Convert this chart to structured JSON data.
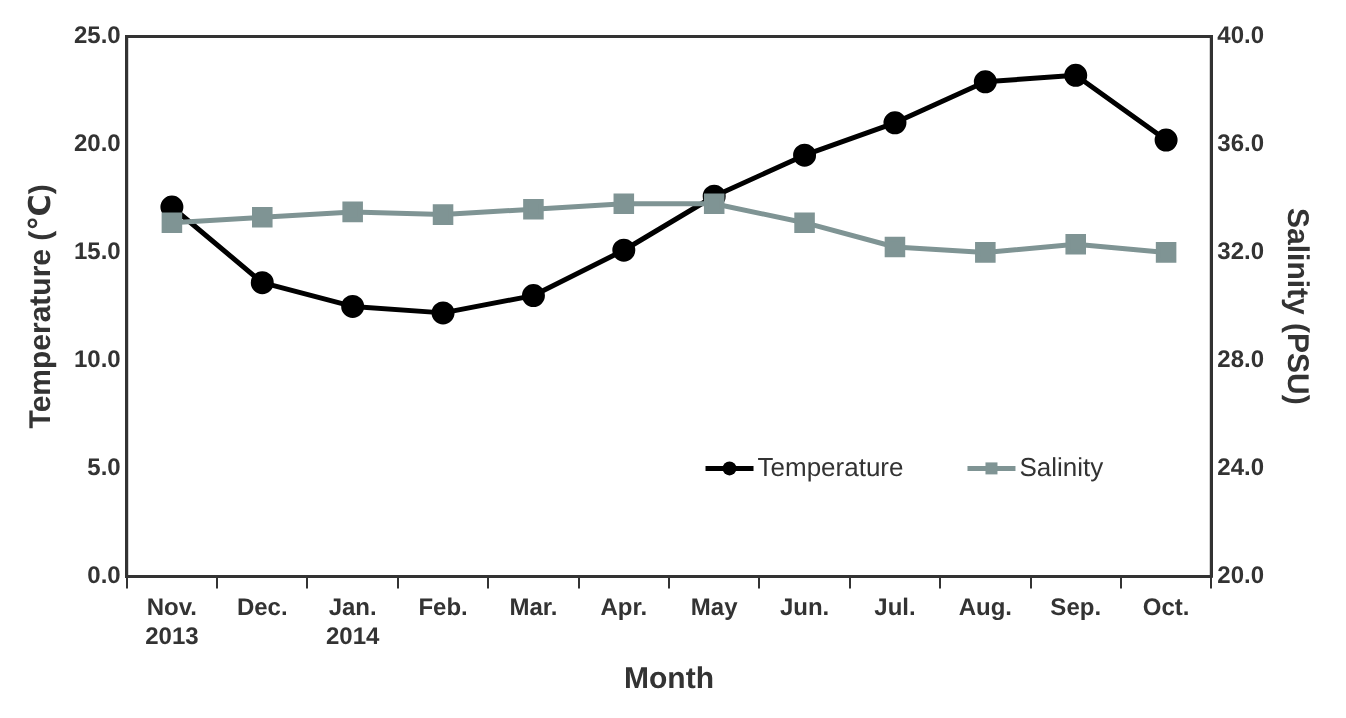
{
  "chart_data": {
    "type": "line",
    "xlabel": "Month",
    "ylabel": "Temperature (℃)",
    "y2label": "Salinity (PSU)",
    "categories": [
      "Nov.\n2013",
      "Dec.",
      "Jan.\n2014",
      "Feb.",
      "Mar.",
      "Apr.",
      "May",
      "Jun.",
      "Jul.",
      "Aug.",
      "Sep.",
      "Oct."
    ],
    "series": [
      {
        "name": "Temperature",
        "color": "#000000",
        "marker": "circle",
        "values": [
          17.1,
          13.6,
          12.5,
          12.2,
          13.0,
          15.1,
          17.6,
          19.5,
          21.0,
          22.9,
          23.2,
          20.2
        ]
      },
      {
        "name": "Salinity",
        "color": "#7f9494",
        "marker": "square",
        "axis": "y2",
        "values": [
          33.1,
          33.3,
          33.5,
          33.4,
          33.6,
          33.8,
          33.8,
          33.1,
          32.2,
          32.0,
          32.3,
          32.0
        ]
      }
    ],
    "ylim": [
      0,
      25
    ],
    "yticks": [
      {
        "value": 0,
        "label": "0.0"
      },
      {
        "value": 5,
        "label": "5.0"
      },
      {
        "value": 10,
        "label": "10.0"
      },
      {
        "value": 15,
        "label": "15.0"
      },
      {
        "value": 20,
        "label": "20.0"
      },
      {
        "value": 25,
        "label": "25.0"
      }
    ],
    "y2lim": [
      20,
      40
    ],
    "y2ticks": [
      {
        "value": 20,
        "label": "20.0"
      },
      {
        "value": 24,
        "label": "24.0"
      },
      {
        "value": 28,
        "label": "28.0"
      },
      {
        "value": 32,
        "label": "32.0"
      },
      {
        "value": 36,
        "label": "36.0"
      },
      {
        "value": 40,
        "label": "40.0"
      }
    ],
    "grid": false,
    "legend": "bottom right",
    "line_style": "solid"
  }
}
